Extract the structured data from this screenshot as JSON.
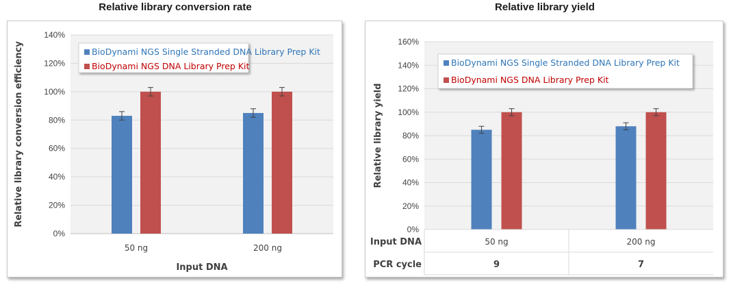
{
  "colors": {
    "series1": "#4f81bd",
    "series2": "#c0504d",
    "series1_text": "#2e75b6",
    "series2_text": "#c00000",
    "grid": "#d9d9d9",
    "plot_bg": "#f2f2f2"
  },
  "chart_data": [
    {
      "type": "bar",
      "title": "Relative library conversion rate",
      "categories": [
        "50 ng",
        "200 ng"
      ],
      "series": [
        {
          "name": "BioDynami NGS Single Stranded DNA Library Prep Kit",
          "values": [
            83,
            85
          ],
          "errors": [
            3,
            3
          ]
        },
        {
          "name": "BioDynami NGS DNA Library Prep Kit",
          "values": [
            100,
            100
          ],
          "errors": [
            3,
            3
          ]
        }
      ],
      "xlabel": "Input DNA",
      "ylabel": "Relative library conversion efficiency",
      "ylim": [
        0,
        140
      ],
      "yticks": [
        "0%",
        "20%",
        "40%",
        "60%",
        "80%",
        "100%",
        "120%",
        "140%"
      ],
      "grid": true,
      "legend": "top-left"
    },
    {
      "type": "bar",
      "title": "Relative library yield",
      "categories": [
        "50 ng",
        "200 ng"
      ],
      "series": [
        {
          "name": "BioDynami NGS Single Stranded DNA Library Prep Kit",
          "values": [
            85,
            88
          ],
          "errors": [
            3,
            3
          ]
        },
        {
          "name": "BioDynami NGS DNA Library Prep Kit",
          "values": [
            100,
            100
          ],
          "errors": [
            3,
            3
          ]
        }
      ],
      "ylabel": "Relative library yield",
      "ylim": [
        0,
        160
      ],
      "yticks": [
        "0%",
        "20%",
        "40%",
        "60%",
        "80%",
        "100%",
        "120%",
        "140%",
        "160%"
      ],
      "grid": true,
      "legend": "top-left",
      "table_rows": [
        {
          "label": "Input DNA",
          "cells": [
            "50 ng",
            "200 ng"
          ]
        },
        {
          "label": "PCR cycle",
          "cells": [
            "9",
            "7"
          ]
        }
      ]
    }
  ]
}
